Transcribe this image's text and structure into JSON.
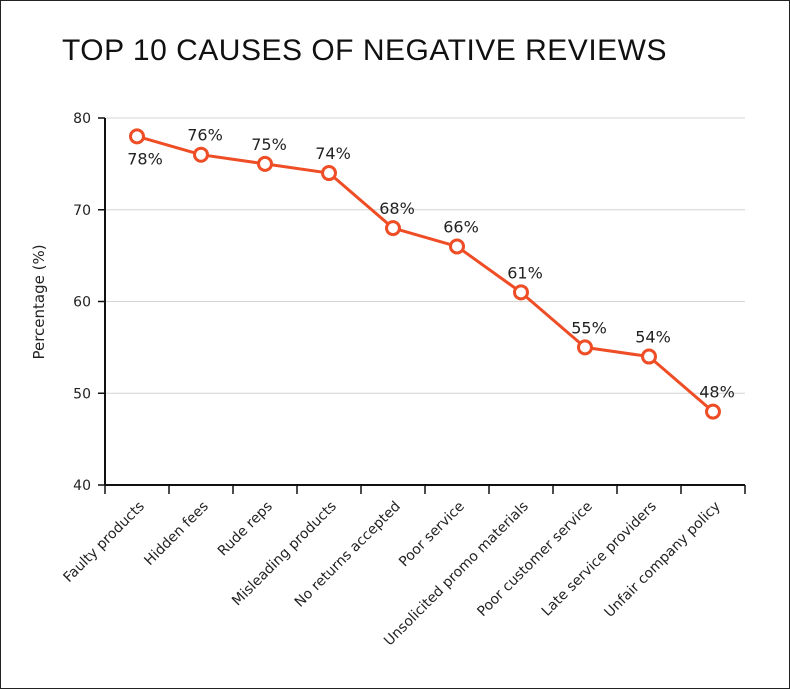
{
  "chart_data": {
    "type": "line",
    "title": "TOP 10 CAUSES OF NEGATIVE REVIEWS",
    "ylabel": "Percentage (%)",
    "xlabel": "",
    "ylim": [
      40,
      80
    ],
    "yticks": [
      40,
      50,
      60,
      70,
      80
    ],
    "grid": "horizontal",
    "color": "#ee4d25",
    "categories": [
      "Faulty products",
      "Hidden fees",
      "Rude reps",
      "Misleading products",
      "No returns accepted",
      "Poor service",
      "Unsolicited promo materials",
      "Poor customer service",
      "Late service providers",
      "Unfair company policy"
    ],
    "values": [
      78,
      76,
      75,
      74,
      68,
      66,
      61,
      55,
      54,
      48
    ],
    "data_labels": [
      "78%",
      "76%",
      "75%",
      "74%",
      "68%",
      "66%",
      "61%",
      "55%",
      "54%",
      "48%"
    ]
  }
}
